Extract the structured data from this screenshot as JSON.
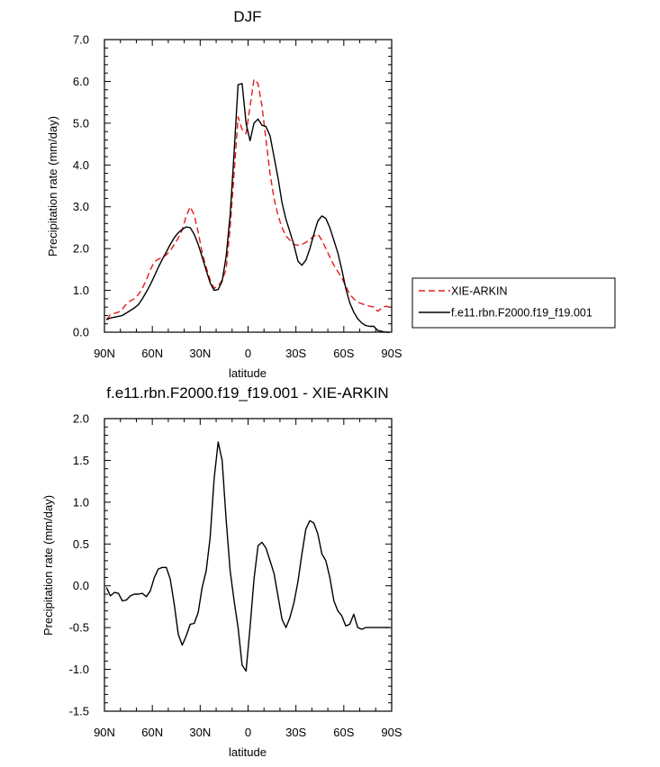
{
  "chart_data": [
    {
      "type": "line",
      "title": "DJF",
      "xlabel": "latitude",
      "ylabel": "Precipitation rate (mm/day)",
      "xlim": [
        90,
        -90
      ],
      "ylim": [
        0,
        7
      ],
      "xticks": [
        90,
        60,
        30,
        0,
        -30,
        -60,
        -90
      ],
      "xtick_labels": [
        "90N",
        "60N",
        "30N",
        "0",
        "30S",
        "60S",
        "90S"
      ],
      "yticks": [
        0,
        1,
        2,
        3,
        4,
        5,
        6,
        7
      ],
      "ytick_labels": [
        "0.0",
        "1.0",
        "2.0",
        "3.0",
        "4.0",
        "5.0",
        "6.0",
        "7.0"
      ],
      "legend": "right",
      "series": [
        {
          "name": "XIE-ARKIN",
          "color": "#e41a1c",
          "dash": "dashed",
          "x": [
            88.75,
            86.25,
            83.75,
            81.25,
            78.75,
            76.25,
            73.75,
            71.25,
            68.75,
            66.25,
            63.75,
            61.25,
            58.75,
            56.25,
            53.75,
            51.25,
            48.75,
            46.25,
            43.75,
            41.25,
            38.75,
            36.25,
            33.75,
            31.25,
            28.75,
            26.25,
            23.75,
            21.25,
            18.75,
            16.25,
            13.75,
            11.25,
            8.75,
            6.25,
            3.75,
            1.25,
            -1.25,
            -3.75,
            -6.25,
            -8.75,
            -11.25,
            -13.75,
            -16.25,
            -18.75,
            -21.25,
            -23.75,
            -26.25,
            -28.75,
            -31.25,
            -33.75,
            -36.25,
            -38.75,
            -41.25,
            -43.75,
            -46.25,
            -48.75,
            -51.25,
            -53.75,
            -56.25,
            -58.75,
            -61.25,
            -63.75,
            -66.25,
            -68.75,
            -71.25,
            -73.75,
            -76.25,
            -78.75,
            -81.25,
            -83.75,
            -86.25,
            -88.75
          ],
          "values": [
            0.3,
            0.42,
            0.45,
            0.48,
            0.55,
            0.68,
            0.75,
            0.8,
            0.9,
            1.05,
            1.25,
            1.5,
            1.68,
            1.75,
            1.78,
            1.85,
            1.95,
            2.1,
            2.25,
            2.45,
            2.78,
            3.0,
            2.8,
            2.4,
            1.9,
            1.55,
            1.25,
            1.05,
            1.1,
            1.25,
            1.5,
            2.5,
            3.8,
            5.15,
            4.85,
            4.75,
            5.4,
            6.05,
            5.95,
            5.4,
            4.6,
            3.8,
            3.2,
            2.8,
            2.5,
            2.3,
            2.2,
            2.1,
            2.08,
            2.1,
            2.15,
            2.22,
            2.3,
            2.35,
            2.2,
            2.0,
            1.8,
            1.6,
            1.45,
            1.3,
            1.1,
            0.9,
            0.8,
            0.72,
            0.68,
            0.65,
            0.62,
            0.6,
            0.5,
            0.58,
            0.62,
            0.6
          ]
        },
        {
          "name": "f.e11.rbn.F2000.f19_f19.001",
          "color": "#000000",
          "dash": "solid",
          "x": [
            88.75,
            86.25,
            83.75,
            81.25,
            78.75,
            76.25,
            73.75,
            71.25,
            68.75,
            66.25,
            63.75,
            61.25,
            58.75,
            56.25,
            53.75,
            51.25,
            48.75,
            46.25,
            43.75,
            41.25,
            38.75,
            36.25,
            33.75,
            31.25,
            28.75,
            26.25,
            23.75,
            21.25,
            18.75,
            16.25,
            13.75,
            11.25,
            8.75,
            6.25,
            3.75,
            1.25,
            -1.25,
            -3.75,
            -6.25,
            -8.75,
            -11.25,
            -13.75,
            -16.25,
            -18.75,
            -21.25,
            -23.75,
            -26.25,
            -28.75,
            -31.25,
            -33.75,
            -36.25,
            -38.75,
            -41.25,
            -43.75,
            -46.25,
            -48.75,
            -51.25,
            -53.75,
            -56.25,
            -58.75,
            -61.25,
            -63.75,
            -66.25,
            -68.75,
            -71.25,
            -73.75,
            -76.25,
            -78.75,
            -81.25,
            -83.75,
            -86.25,
            -88.75
          ],
          "values": [
            0.3,
            0.34,
            0.36,
            0.38,
            0.4,
            0.46,
            0.52,
            0.58,
            0.66,
            0.8,
            0.96,
            1.14,
            1.34,
            1.55,
            1.74,
            1.92,
            2.1,
            2.26,
            2.38,
            2.46,
            2.52,
            2.5,
            2.34,
            2.1,
            1.8,
            1.48,
            1.18,
            1.0,
            1.02,
            1.22,
            1.8,
            2.8,
            4.3,
            5.92,
            5.95,
            5.0,
            4.58,
            5.0,
            5.1,
            4.95,
            4.92,
            4.7,
            4.2,
            3.7,
            3.1,
            2.7,
            2.4,
            2.08,
            1.7,
            1.6,
            1.72,
            2.0,
            2.35,
            2.66,
            2.78,
            2.72,
            2.5,
            2.2,
            1.9,
            1.5,
            1.05,
            0.7,
            0.48,
            0.32,
            0.22,
            0.16,
            0.14,
            0.14,
            0.04,
            0.02,
            0.0,
            0.0
          ]
        }
      ]
    },
    {
      "type": "line",
      "title": "f.e11.rbn.F2000.f19_f19.001 - XIE-ARKIN",
      "xlabel": "latitude",
      "ylabel": "Precipitation rate (mm/day)",
      "xlim": [
        90,
        -90
      ],
      "ylim": [
        -1.5,
        2.0
      ],
      "xticks": [
        90,
        60,
        30,
        0,
        -30,
        -60,
        -90
      ],
      "xtick_labels": [
        "90N",
        "60N",
        "30N",
        "0",
        "30S",
        "60S",
        "90S"
      ],
      "yticks": [
        -1.5,
        -1.0,
        -0.5,
        0.0,
        0.5,
        1.0,
        1.5,
        2.0
      ],
      "ytick_labels": [
        "-1.5",
        "-1.0",
        "-0.5",
        "0.0",
        "0.5",
        "1.0",
        "1.5",
        "2.0"
      ],
      "series": [
        {
          "color": "#000000",
          "dash": "solid",
          "x": [
            88.75,
            86.25,
            83.75,
            81.25,
            78.75,
            76.25,
            73.75,
            71.25,
            68.75,
            66.25,
            63.75,
            61.25,
            58.75,
            56.25,
            53.75,
            51.25,
            48.75,
            46.25,
            43.75,
            41.25,
            38.75,
            36.25,
            33.75,
            31.25,
            28.75,
            26.25,
            23.75,
            21.25,
            18.75,
            16.25,
            13.75,
            11.25,
            8.75,
            6.25,
            3.75,
            1.25,
            -1.25,
            -3.75,
            -6.25,
            -8.75,
            -11.25,
            -13.75,
            -16.25,
            -18.75,
            -21.25,
            -23.75,
            -26.25,
            -28.75,
            -31.25,
            -33.75,
            -36.25,
            -38.75,
            -41.25,
            -43.75,
            -46.25,
            -48.75,
            -51.25,
            -53.75,
            -56.25,
            -58.75,
            -61.25,
            -63.75,
            -66.25,
            -68.75,
            -71.25,
            -73.75,
            -76.25,
            -78.75,
            -81.25,
            -83.75,
            -86.25,
            -88.75
          ],
          "values": [
            -0.02,
            -0.12,
            -0.08,
            -0.09,
            -0.18,
            -0.17,
            -0.12,
            -0.1,
            -0.1,
            -0.09,
            -0.13,
            -0.06,
            0.1,
            0.2,
            0.22,
            0.22,
            0.08,
            -0.22,
            -0.58,
            -0.71,
            -0.6,
            -0.46,
            -0.45,
            -0.32,
            -0.02,
            0.18,
            0.58,
            1.28,
            1.72,
            1.5,
            0.8,
            0.18,
            -0.18,
            -0.5,
            -0.95,
            -1.02,
            -0.5,
            0.08,
            0.48,
            0.52,
            0.45,
            0.3,
            0.15,
            -0.12,
            -0.4,
            -0.5,
            -0.38,
            -0.2,
            0.05,
            0.38,
            0.68,
            0.78,
            0.75,
            0.62,
            0.38,
            0.3,
            0.1,
            -0.18,
            -0.3,
            -0.36,
            -0.48,
            -0.46,
            -0.34,
            -0.5,
            -0.52,
            -0.5,
            -0.5,
            -0.5,
            -0.5,
            -0.5,
            -0.5,
            -0.5
          ]
        }
      ]
    }
  ]
}
